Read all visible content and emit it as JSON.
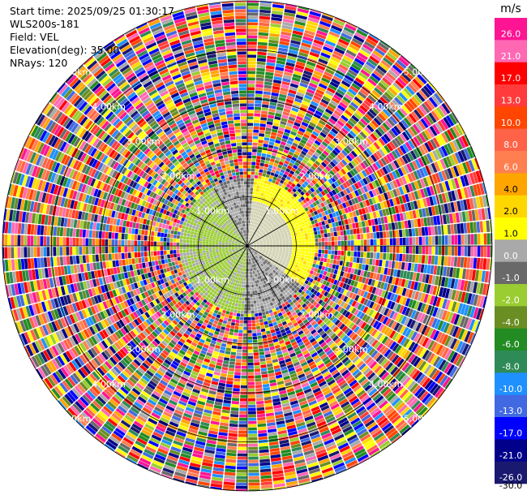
{
  "header": {
    "start_time": "Start time: 2025/09/25 01:30:17",
    "instrument": "WLS200s-181",
    "field": "Field: VEL",
    "elevation": "Elevation(deg): 35.00",
    "nrays": "NRays: 120"
  },
  "chart_data": {
    "type": "heatmap",
    "subtype": "polar-ppi",
    "field": "VEL",
    "units": "m/s",
    "nrays": 120,
    "elevation_deg": 35.0,
    "range_km": [
      0,
      5.0
    ],
    "range_ring_labels": [
      "1.00km",
      "2.00km",
      "3.00km",
      "4.00km",
      "5.00km"
    ],
    "range_rings_km": [
      1,
      2,
      3,
      4,
      5
    ],
    "colorbar": {
      "ticks": [
        "26.0",
        "21.0",
        "17.0",
        "13.0",
        "10.0",
        "8.0",
        "6.0",
        "4.0",
        "2.0",
        "1.0",
        "0.0",
        "-1.0",
        "-2.0",
        "-4.0",
        "-6.0",
        "-8.0",
        "-10.0",
        "-13.0",
        "-17.0",
        "-21.0",
        "-26.0",
        "-30.0"
      ],
      "colors": [
        "#ff1493",
        "#ff69b4",
        "#ff0000",
        "#ff3b3b",
        "#ff4500",
        "#ff6347",
        "#ff7f50",
        "#ffa500",
        "#ffd700",
        "#ffff00",
        "#a9a9a9",
        "#696969",
        "#9acd32",
        "#6b8e23",
        "#228b22",
        "#2e8b57",
        "#1e90ff",
        "#4169e1",
        "#0000ff",
        "#00008b",
        "#191970"
      ]
    },
    "pattern_notes": "Coherent velocity near radar: positive (yellow) to the north-east, negative (green/grey) to the south-west; noisy random colors beyond ~1.3 km."
  }
}
